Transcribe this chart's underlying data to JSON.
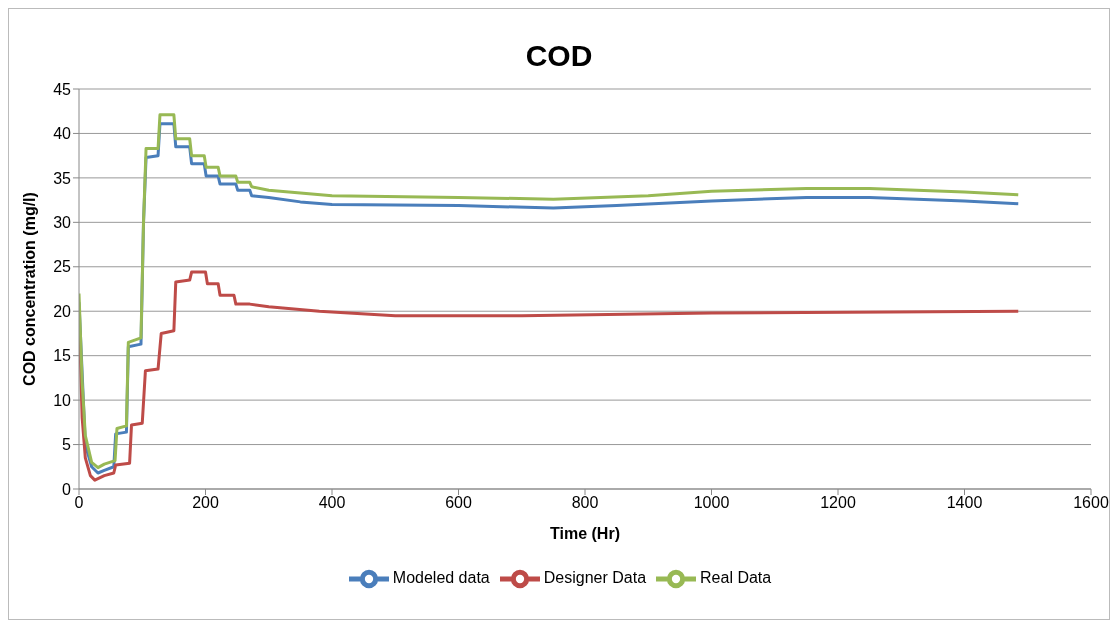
{
  "chart_data": {
    "type": "line",
    "title": "COD",
    "xlabel": "Time (Hr)",
    "ylabel": "COD concentration (mg/l)",
    "xlim": [
      0,
      1600
    ],
    "xticks": [
      0,
      200,
      400,
      600,
      800,
      1000,
      1200,
      1400,
      1600
    ],
    "ylim": [
      0,
      45
    ],
    "yticks": [
      0,
      5,
      10,
      15,
      20,
      25,
      30,
      35,
      40,
      45
    ],
    "grid": "y",
    "legend": "bottom",
    "marker": "none",
    "line_style": "solid",
    "series": [
      {
        "name": "Modeled data",
        "color": "#4a7ebb",
        "x": [
          0,
          5,
          10,
          20,
          30,
          40,
          55,
          58,
          75,
          78,
          98,
          102,
          106,
          125,
          128,
          150,
          153,
          175,
          178,
          198,
          201,
          220,
          223,
          248,
          251,
          270,
          273,
          300,
          350,
          400,
          600,
          750,
          850,
          1000,
          1150,
          1250,
          1400,
          1485
        ],
        "values": [
          21,
          null,
          5,
          2.5,
          1.8,
          2.1,
          2.5,
          6.2,
          6.4,
          16,
          16.3,
          30,
          37.3,
          37.5,
          41.1,
          41.1,
          38.5,
          38.5,
          36.6,
          36.6,
          35.2,
          35.2,
          34.3,
          34.3,
          33.6,
          33.6,
          33,
          32.8,
          32.3,
          32,
          31.9,
          31.6,
          31.9,
          32.4,
          32.8,
          32.8,
          32.4,
          32.1
        ]
      },
      {
        "name": "Designer Data",
        "color": "#be4b48",
        "x": [
          0,
          5,
          10,
          18,
          25,
          40,
          55,
          58,
          80,
          83,
          100,
          105,
          125,
          130,
          150,
          153,
          175,
          178,
          200,
          203,
          220,
          223,
          245,
          248,
          270,
          300,
          380,
          500,
          700,
          1000,
          1485
        ],
        "values": [
          20,
          8,
          3.5,
          1.5,
          1.0,
          1.5,
          1.8,
          2.7,
          2.9,
          7.2,
          7.4,
          13.3,
          13.5,
          17.5,
          17.8,
          23.3,
          23.5,
          24.4,
          24.4,
          23.1,
          23.1,
          21.8,
          21.8,
          20.8,
          20.8,
          20.5,
          20,
          19.5,
          19.5,
          19.8,
          20
        ]
      },
      {
        "name": "Real Data",
        "color": "#98b954",
        "x": [
          0,
          5,
          10,
          20,
          30,
          40,
          57,
          60,
          75,
          78,
          98,
          102,
          106,
          125,
          128,
          150,
          153,
          175,
          178,
          198,
          201,
          220,
          223,
          248,
          251,
          270,
          273,
          300,
          400,
          600,
          750,
          900,
          1000,
          1150,
          1250,
          1400,
          1485
        ],
        "values": [
          22,
          12,
          6,
          3,
          2.4,
          2.8,
          3.2,
          6.8,
          7.1,
          16.5,
          17,
          30,
          38.3,
          38.3,
          42.1,
          42.1,
          39.4,
          39.4,
          37.5,
          37.5,
          36.2,
          36.2,
          35.2,
          35.2,
          34.5,
          34.5,
          34,
          33.6,
          33,
          32.8,
          32.6,
          33,
          33.5,
          33.8,
          33.8,
          33.4,
          33.1
        ]
      }
    ]
  }
}
